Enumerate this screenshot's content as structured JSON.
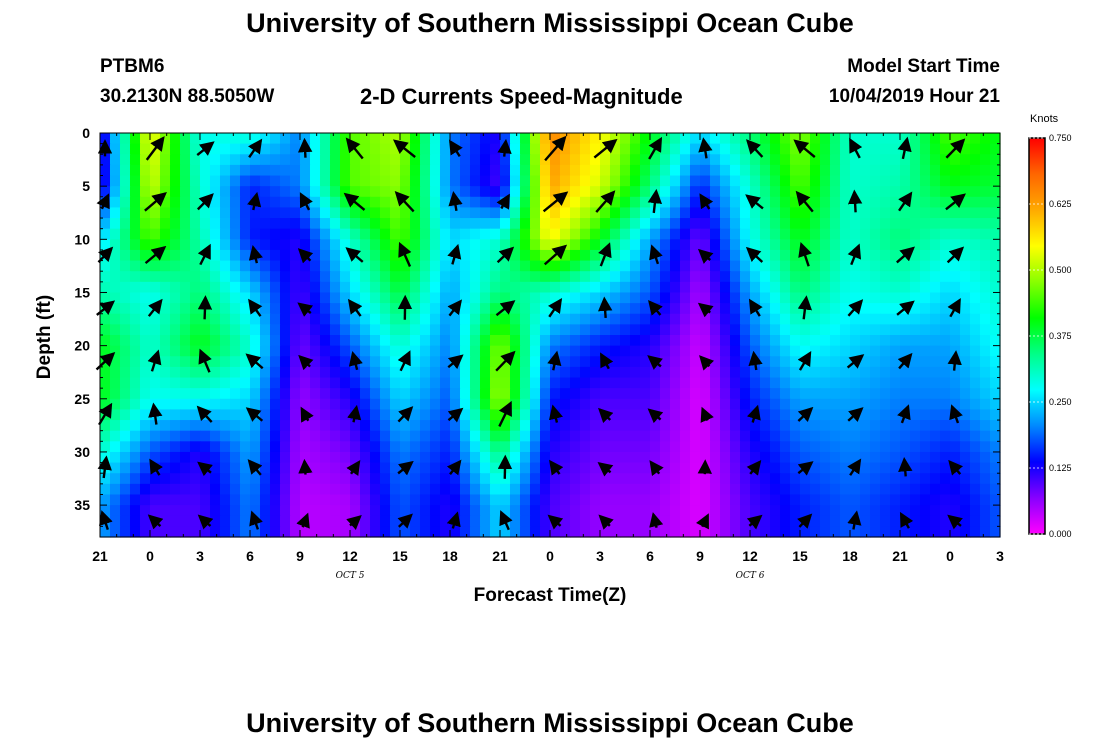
{
  "header": {
    "title": "University of Southern Mississippi Ocean Cube",
    "station": "PTBM6",
    "location": "30.2130N 88.5050W",
    "subtitle": "2-D Currents Speed-Magnitude",
    "model_start_label": "Model Start Time",
    "model_start_value": "10/04/2019 Hour 21"
  },
  "footer": {
    "title": "University of Southern Mississippi Ocean Cube"
  },
  "colorbar": {
    "unit": "Knots",
    "ticks": [
      "0.750",
      "0.625",
      "0.500",
      "0.375",
      "0.250",
      "0.125",
      "0.000"
    ],
    "stops": [
      "#ff00ff",
      "#8800ff",
      "#0000ff",
      "#0088ff",
      "#00ffff",
      "#00ff88",
      "#00ff00",
      "#88ff00",
      "#ffff00",
      "#ffaa00",
      "#ff6600",
      "#ff0000"
    ]
  },
  "chart_data": {
    "type": "heatmap",
    "title": "2-D Currents Speed-Magnitude",
    "xlabel": "Forecast Time(Z)",
    "ylabel": "Depth (ft)",
    "x_tick_labels": [
      "21",
      "0",
      "3",
      "6",
      "9",
      "12",
      "15",
      "18",
      "21",
      "0",
      "3",
      "6",
      "9",
      "12",
      "15",
      "18",
      "21",
      "0",
      "3"
    ],
    "y_tick_labels": [
      "0",
      "5",
      "10",
      "15",
      "20",
      "25",
      "30",
      "35"
    ],
    "date_markers": [
      "OCT 5",
      "OCT 6"
    ],
    "x_range_hours": [
      0,
      54
    ],
    "ylim": [
      0,
      38
    ],
    "y_inverted": true,
    "value_unit": "Knots",
    "value_range": [
      0.0,
      0.75
    ],
    "time_hours": [
      0,
      3,
      6,
      9,
      12,
      15,
      18,
      21,
      24,
      27,
      30,
      33,
      36,
      39,
      42,
      45,
      48,
      51,
      54
    ],
    "depths_ft": [
      0,
      5,
      10,
      15,
      20,
      25,
      30,
      35
    ],
    "speed": [
      [
        0.1,
        0.55,
        0.28,
        0.3,
        0.2,
        0.45,
        0.5,
        0.2,
        0.12,
        0.65,
        0.55,
        0.4,
        0.25,
        0.35,
        0.48,
        0.3,
        0.3,
        0.45,
        0.4
      ],
      [
        0.1,
        0.52,
        0.3,
        0.15,
        0.2,
        0.45,
        0.48,
        0.2,
        0.1,
        0.62,
        0.52,
        0.35,
        0.15,
        0.3,
        0.45,
        0.3,
        0.32,
        0.4,
        0.38
      ],
      [
        0.25,
        0.45,
        0.32,
        0.15,
        0.12,
        0.3,
        0.45,
        0.25,
        0.3,
        0.55,
        0.4,
        0.22,
        0.08,
        0.28,
        0.4,
        0.3,
        0.35,
        0.3,
        0.32
      ],
      [
        0.32,
        0.28,
        0.35,
        0.25,
        0.1,
        0.25,
        0.38,
        0.22,
        0.35,
        0.3,
        0.25,
        0.18,
        0.05,
        0.22,
        0.35,
        0.28,
        0.3,
        0.25,
        0.3
      ],
      [
        0.4,
        0.3,
        0.4,
        0.3,
        0.08,
        0.18,
        0.3,
        0.2,
        0.48,
        0.2,
        0.15,
        0.12,
        0.03,
        0.18,
        0.28,
        0.25,
        0.22,
        0.22,
        0.28
      ],
      [
        0.4,
        0.28,
        0.28,
        0.25,
        0.06,
        0.12,
        0.25,
        0.18,
        0.5,
        0.15,
        0.1,
        0.1,
        0.02,
        0.15,
        0.22,
        0.22,
        0.2,
        0.2,
        0.25
      ],
      [
        0.3,
        0.18,
        0.12,
        0.22,
        0.05,
        0.08,
        0.2,
        0.15,
        0.35,
        0.12,
        0.08,
        0.08,
        0.02,
        0.12,
        0.18,
        0.2,
        0.18,
        0.15,
        0.2
      ],
      [
        0.22,
        0.1,
        0.1,
        0.2,
        0.04,
        0.05,
        0.18,
        0.12,
        0.25,
        0.1,
        0.06,
        0.06,
        0.02,
        0.1,
        0.15,
        0.18,
        0.15,
        0.12,
        0.18
      ]
    ]
  }
}
